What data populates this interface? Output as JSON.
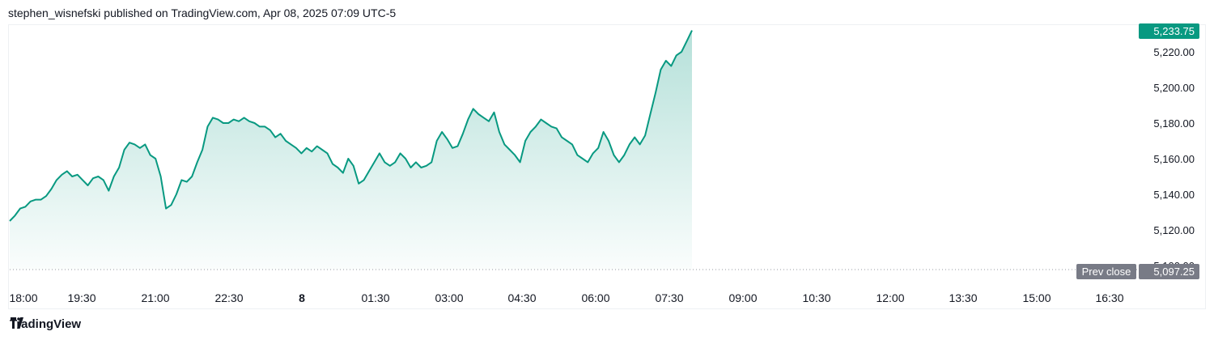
{
  "header": {
    "text": "stephen_wisnefski published on TradingView.com, Apr 08, 2025 07:09 UTC-5"
  },
  "footer": {
    "brand": "TradingView"
  },
  "colors": {
    "line": "#089981",
    "fill_top": "#089981",
    "axis_text": "#131722",
    "badge_bg": "#089981",
    "prev_close_bg": "#787b86"
  },
  "chart_data": {
    "type": "area",
    "x_ticks": [
      "18:00",
      "19:30",
      "21:00",
      "22:30",
      "8",
      "01:30",
      "03:00",
      "04:30",
      "06:00",
      "07:30",
      "09:00",
      "10:30",
      "12:00",
      "13:30",
      "15:00",
      "16:30"
    ],
    "y_ticks": [
      "5,120.00",
      "5,140.00",
      "5,160.00",
      "5,180.00",
      "5,200.00",
      "5,220.00"
    ],
    "y_partial_tick": "5,100.00",
    "ylim": [
      5100,
      5232
    ],
    "last_price_label": "5,233.75",
    "prev_close_label": "Prev close",
    "prev_close_value": "5,097.25",
    "values": [
      5125,
      5128,
      5132,
      5133,
      5136,
      5137,
      5137,
      5139,
      5143,
      5148,
      5151,
      5153,
      5150,
      5151,
      5148,
      5145,
      5149,
      5150,
      5148,
      5142,
      5150,
      5155,
      5165,
      5169,
      5168,
      5166,
      5168,
      5162,
      5160,
      5150,
      5132,
      5134,
      5140,
      5148,
      5147,
      5150,
      5158,
      5165,
      5178,
      5183,
      5182,
      5180,
      5180,
      5182,
      5181,
      5183,
      5181,
      5180,
      5178,
      5178,
      5176,
      5172,
      5174,
      5170,
      5168,
      5166,
      5163,
      5166,
      5164,
      5167,
      5165,
      5163,
      5157,
      5155,
      5152,
      5160,
      5156,
      5146,
      5148,
      5153,
      5158,
      5163,
      5158,
      5156,
      5158,
      5163,
      5160,
      5155,
      5158,
      5155,
      5156,
      5158,
      5170,
      5175,
      5171,
      5166,
      5167,
      5174,
      5182,
      5188,
      5185,
      5183,
      5181,
      5186,
      5175,
      5168,
      5165,
      5162,
      5158,
      5170,
      5175,
      5178,
      5182,
      5180,
      5178,
      5177,
      5172,
      5170,
      5168,
      5162,
      5160,
      5158,
      5163,
      5166,
      5175,
      5170,
      5162,
      5158,
      5162,
      5168,
      5172,
      5168,
      5173,
      5185,
      5197,
      5210,
      5215,
      5212,
      5218,
      5220,
      5226,
      5232
    ]
  }
}
